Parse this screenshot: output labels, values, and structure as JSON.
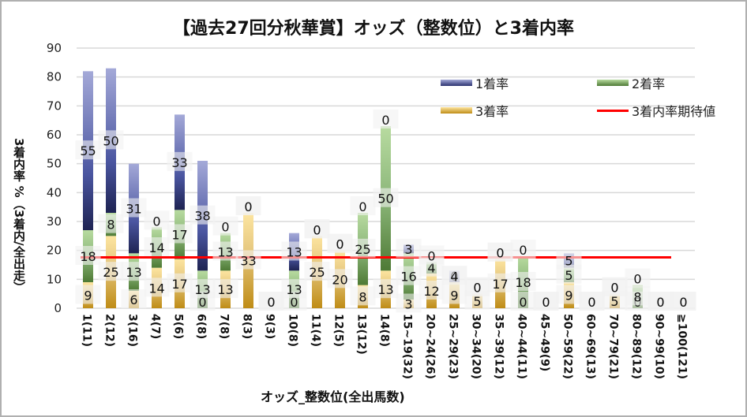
{
  "chart_data": {
    "type": "bar",
    "stacked": true,
    "title": "【過去27回分秋華賞】オッズ（整数位）と3着内率",
    "xlabel": "オッズ_整数位(全出馬数)",
    "ylabel": "3着内率 %（3着内/全出走）",
    "ylim": [
      0,
      90
    ],
    "yticks": [
      0,
      10,
      20,
      30,
      40,
      50,
      60,
      70,
      80,
      90
    ],
    "grid": true,
    "legend_position": "top-right",
    "categories": [
      "1(11)",
      "2(12)",
      "3(16)",
      "4(7)",
      "5(6)",
      "6(8)",
      "7(8)",
      "8(3)",
      "9(3)",
      "10(8)",
      "11(4)",
      "12(5)",
      "13(12)",
      "14(8)",
      "15~19(32)",
      "20~24(26)",
      "25~29(23)",
      "30~34(20)",
      "35~39(12)",
      "40~44(11)",
      "45~49(9)",
      "50~59(22)",
      "60~69(13)",
      "70~79(21)",
      "80~89(12)",
      "90~99(10)",
      "≧100(121)"
    ],
    "series": [
      {
        "name": "3着率",
        "color": "#c9a33a",
        "values": [
          9,
          25,
          6,
          14,
          17,
          0,
          13,
          33,
          0,
          0,
          25,
          20,
          8,
          13,
          3,
          12,
          9,
          5,
          17,
          0,
          0,
          9,
          0,
          5,
          0,
          0,
          0
        ]
      },
      {
        "name": "2着率",
        "color": "#6a9a4e",
        "values": [
          18,
          8,
          13,
          14,
          17,
          13,
          13,
          0,
          0,
          13,
          0,
          0,
          25,
          50,
          16,
          4,
          0,
          0,
          0,
          18,
          0,
          5,
          0,
          0,
          8,
          0,
          0
        ]
      },
      {
        "name": "1着率",
        "color": "#3a4590",
        "values": [
          55,
          50,
          31,
          0,
          33,
          38,
          0,
          0,
          0,
          13,
          0,
          0,
          0,
          0,
          3,
          0,
          4,
          0,
          0,
          0,
          0,
          5,
          0,
          0,
          0,
          0,
          0
        ]
      }
    ],
    "reference_line": {
      "name": "3着内率期待値",
      "color": "#ff0000",
      "value": 17.6
    }
  },
  "legend": {
    "win": "1着率",
    "second": "2着率",
    "third": "3着率",
    "expected": "3着内率期待値"
  }
}
